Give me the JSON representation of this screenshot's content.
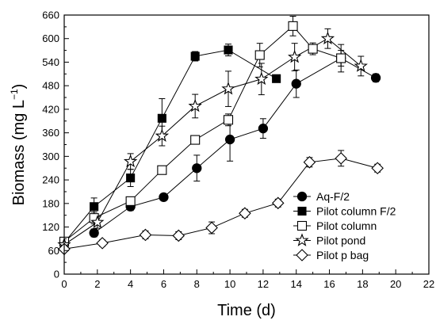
{
  "chart_data": {
    "type": "line",
    "xlabel": "Time (d)",
    "ylabel": "Biomass (mg L",
    "ylabel_unit_sup": "−1",
    "ylabel_close": ")",
    "xlim": [
      0,
      22
    ],
    "ylim": [
      0,
      660
    ],
    "xticks": [
      "0",
      "2",
      "4",
      "6",
      "8",
      "10",
      "12",
      "14",
      "16",
      "18",
      "20",
      "22"
    ],
    "yticks": [
      "0",
      "60",
      "120",
      "180",
      "240",
      "300",
      "360",
      "420",
      "480",
      "540",
      "600",
      "660"
    ],
    "legend_position": "bottom-right",
    "grid": false,
    "series": [
      {
        "name": "Aq-F/2",
        "marker": "filled-circle",
        "x": [
          1.8,
          4,
          6,
          8,
          10,
          12,
          14,
          16.7,
          18.8
        ],
        "y": [
          105,
          172,
          196,
          270,
          343,
          371,
          485,
          550,
          500
        ],
        "err": [
          10,
          10,
          8,
          33,
          55,
          25,
          35,
          35,
          10
        ]
      },
      {
        "name": "Pilot column F/2",
        "marker": "filled-square",
        "x": [
          0,
          1.8,
          4,
          5.9,
          7.9,
          9.9,
          12.8
        ],
        "y": [
          80,
          172,
          245,
          397,
          555,
          571,
          498
        ],
        "err": [
          8,
          22,
          22,
          50,
          12,
          15,
          0
        ]
      },
      {
        "name": "Pilot column",
        "marker": "open-square",
        "x": [
          0,
          1.8,
          4,
          5.9,
          7.9,
          9.9,
          11.8,
          13.8,
          15,
          16.7
        ],
        "y": [
          83,
          143,
          186,
          265,
          342,
          393,
          558,
          632,
          574,
          550
        ],
        "err": [
          8,
          15,
          10,
          8,
          10,
          15,
          30,
          25,
          15,
          20
        ]
      },
      {
        "name": "Pilot pond",
        "marker": "open-star",
        "x": [
          0,
          2,
          4,
          5.9,
          7.9,
          9.9,
          11.9,
          13.9,
          15.9,
          17.9
        ],
        "y": [
          75,
          132,
          287,
          352,
          428,
          472,
          497,
          553,
          600,
          530
        ],
        "err": [
          8,
          15,
          20,
          25,
          30,
          45,
          40,
          35,
          25,
          25
        ]
      },
      {
        "name": "Pilot p bag",
        "marker": "open-diamond",
        "x": [
          0,
          2.3,
          4.9,
          6.9,
          8.9,
          10.9,
          12.9,
          14.8,
          16.7,
          18.9
        ],
        "y": [
          64,
          79,
          100,
          98,
          118,
          155,
          181,
          285,
          295,
          270
        ],
        "err": [
          5,
          8,
          10,
          10,
          15,
          10,
          10,
          12,
          20,
          10
        ]
      }
    ]
  }
}
